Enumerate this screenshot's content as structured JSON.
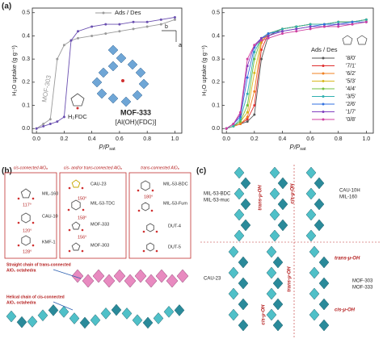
{
  "panel_labels": [
    "(a)",
    "(b)",
    "(c)"
  ],
  "chart_data": [
    {
      "type": "line",
      "ylabel": "H₂O uptake (g g⁻¹)",
      "xlabel": "P/P",
      "xlabel_sub": "sat",
      "legend_title": "Ads / Des",
      "annotations": [
        "[Al(OH)(FDC)]",
        "H₂FDC",
        "a",
        "b"
      ],
      "x": [
        0,
        0.05,
        0.1,
        0.15,
        0.2,
        0.25,
        0.3,
        0.4,
        0.5,
        0.6,
        0.7,
        0.8,
        0.9,
        1.0
      ],
      "xlim": [
        -0.03,
        1.05
      ],
      "ylim": [
        -0.02,
        0.52
      ],
      "xticks": [
        {
          "value": 0,
          "label": "0.0"
        },
        0.2,
        0.4,
        0.6,
        0.8,
        {
          "value": 1,
          "label": "1.0"
        }
      ],
      "yticks": [
        {
          "value": 0,
          "label": "0.0"
        },
        0.1,
        0.2,
        0.3,
        0.4,
        0.5
      ],
      "series": [
        {
          "name": "MOF-303",
          "color": "#9a9a9a",
          "values": [
            0,
            0.02,
            0.04,
            0.3,
            0.36,
            0.38,
            0.39,
            0.4,
            0.41,
            0.42,
            0.43,
            0.44,
            0.45,
            0.47
          ]
        },
        {
          "name": "MOF-333",
          "color": "#6a4fb0",
          "values": [
            0,
            0.01,
            0.02,
            0.03,
            0.05,
            0.38,
            0.42,
            0.44,
            0.45,
            0.45,
            0.46,
            0.46,
            0.47,
            0.48
          ]
        }
      ]
    },
    {
      "type": "line",
      "ylabel": "H₂O uptake (g g⁻¹)",
      "xlabel": "P/P",
      "xlabel_sub": "sat",
      "legend_title": "Ads / Des",
      "x": [
        0,
        0.05,
        0.1,
        0.15,
        0.2,
        0.25,
        0.3,
        0.4,
        0.5,
        0.6,
        0.7,
        0.8,
        0.9,
        1.0
      ],
      "xlim": [
        -0.03,
        1.05
      ],
      "ylim": [
        -0.02,
        0.52
      ],
      "xticks": [
        {
          "value": 0,
          "label": "0.0"
        },
        0.2,
        0.4,
        0.6,
        0.8,
        {
          "value": 1,
          "label": "1.0"
        }
      ],
      "yticks": [
        {
          "value": 0,
          "label": "0.0"
        },
        0.1,
        0.2,
        0.3,
        0.4,
        0.5
      ],
      "series": [
        {
          "name": "'8/0'",
          "color": "#555555",
          "values": [
            0,
            0.01,
            0.02,
            0.03,
            0.06,
            0.3,
            0.4,
            0.43,
            0.44,
            0.45,
            0.45,
            0.46,
            0.46,
            0.47
          ]
        },
        {
          "name": "'7/1'",
          "color": "#e03030",
          "values": [
            0,
            0.01,
            0.02,
            0.04,
            0.1,
            0.34,
            0.41,
            0.43,
            0.44,
            0.45,
            0.45,
            0.46,
            0.46,
            0.47
          ]
        },
        {
          "name": "'6/2'",
          "color": "#f08020",
          "values": [
            0,
            0.01,
            0.02,
            0.05,
            0.16,
            0.37,
            0.41,
            0.43,
            0.44,
            0.45,
            0.45,
            0.46,
            0.46,
            0.47
          ]
        },
        {
          "name": "'5/3'",
          "color": "#d8b820",
          "values": [
            0,
            0.01,
            0.03,
            0.07,
            0.24,
            0.38,
            0.41,
            0.43,
            0.44,
            0.45,
            0.45,
            0.46,
            0.46,
            0.47
          ]
        },
        {
          "name": "'4/4'",
          "color": "#70c040",
          "values": [
            0,
            0.01,
            0.03,
            0.1,
            0.3,
            0.39,
            0.41,
            0.43,
            0.44,
            0.45,
            0.45,
            0.46,
            0.46,
            0.47
          ]
        },
        {
          "name": "'3/5'",
          "color": "#30b0b0",
          "values": [
            0,
            0.01,
            0.04,
            0.15,
            0.33,
            0.39,
            0.41,
            0.43,
            0.44,
            0.45,
            0.45,
            0.46,
            0.46,
            0.47
          ]
        },
        {
          "name": "'2/6'",
          "color": "#3070e0",
          "values": [
            0,
            0.02,
            0.05,
            0.22,
            0.35,
            0.39,
            0.41,
            0.42,
            0.43,
            0.44,
            0.45,
            0.45,
            0.46,
            0.46
          ]
        },
        {
          "name": "'1/7'",
          "color": "#8040c0",
          "values": [
            0,
            0.02,
            0.06,
            0.27,
            0.36,
            0.39,
            0.4,
            0.42,
            0.43,
            0.44,
            0.44,
            0.45,
            0.45,
            0.46
          ]
        },
        {
          "name": "'0/8'",
          "color": "#d040a0",
          "values": [
            0,
            0.02,
            0.07,
            0.3,
            0.36,
            0.38,
            0.39,
            0.41,
            0.42,
            0.43,
            0.44,
            0.44,
            0.45,
            0.46
          ]
        }
      ]
    }
  ],
  "panel_b": {
    "boxes": [
      {
        "title": "cis-connected AlO₆",
        "labels": [
          "MIL-160",
          "CAU-10",
          "KMF-1"
        ],
        "angles": [
          "117°",
          "120°",
          "128°"
        ]
      },
      {
        "title": "cis- and/or trans-connected AlO₆",
        "labels": [
          "CAU-23",
          "MIL-53-TDC",
          "MOF-333",
          "MOF-303"
        ],
        "angles": [
          "150°",
          "158°",
          "156°"
        ]
      },
      {
        "title": "trans-connected AlO₆",
        "labels": [
          "MIL-53-BDC",
          "MIL-53-Fum",
          "DUT-4",
          "DUT-5"
        ],
        "angles": [
          "180°"
        ]
      }
    ],
    "captions": [
      [
        "Straight chain of trans-connected",
        "AlO₆ octahedra"
      ],
      [
        "Helical chain of cis-connected",
        "AlO₆ octahedra"
      ]
    ]
  },
  "panel_c": {
    "labels": [
      "MIL-53-BDC",
      "MIL-53-muc",
      "trans-μ-OH",
      "cis-μ-OH",
      "CAU-10H",
      "MIL-160",
      "CAU-23",
      "cis-μ-OH",
      "trans-μ-OH",
      "trans-μ-OH",
      "MOF-303",
      "MOF-333",
      "cis-μ-OH"
    ]
  }
}
